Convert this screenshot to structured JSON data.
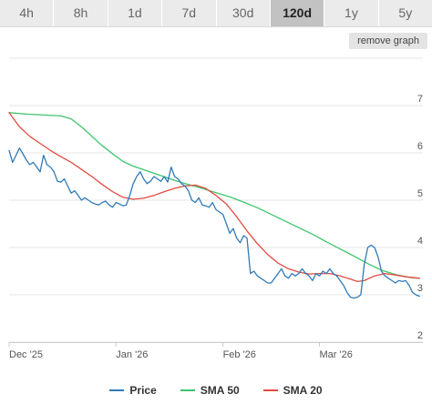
{
  "range_buttons": [
    {
      "label": "4h"
    },
    {
      "label": "8h"
    },
    {
      "label": "1d"
    },
    {
      "label": "7d"
    },
    {
      "label": "30d"
    },
    {
      "label": "120d",
      "active": true
    },
    {
      "label": "1y"
    },
    {
      "label": "5y"
    }
  ],
  "remove_graph_label": "remove graph",
  "legend": [
    {
      "label": "Price",
      "color": "#2f7ab8"
    },
    {
      "label": "SMA 50",
      "color": "#3ec46d"
    },
    {
      "label": "SMA 20",
      "color": "#e44b40"
    }
  ],
  "chart_data": {
    "type": "line",
    "title": "",
    "xlabel": "",
    "ylabel": "",
    "x_range": [
      0,
      120
    ],
    "ylim": [
      2,
      8
    ],
    "y_ticks": [
      2,
      3,
      4,
      5,
      6,
      7
    ],
    "x_ticks": [
      {
        "label": "Dec '25",
        "x": 0
      },
      {
        "label": "Jan '26",
        "x": 31
      },
      {
        "label": "Feb '26",
        "x": 62
      },
      {
        "label": "Mar '26",
        "x": 90
      }
    ],
    "grid": true,
    "legend_position": "bottom",
    "series": [
      {
        "name": "Price",
        "color": "#2f7ab8",
        "points": [
          [
            0,
            6.05
          ],
          [
            1,
            5.8
          ],
          [
            2,
            5.95
          ],
          [
            3,
            6.1
          ],
          [
            4,
            5.98
          ],
          [
            5,
            5.85
          ],
          [
            6,
            5.75
          ],
          [
            7,
            5.8
          ],
          [
            8,
            5.7
          ],
          [
            9,
            5.6
          ],
          [
            10,
            5.95
          ],
          [
            11,
            5.75
          ],
          [
            12,
            5.7
          ],
          [
            13,
            5.6
          ],
          [
            14,
            5.4
          ],
          [
            15,
            5.38
          ],
          [
            16,
            5.45
          ],
          [
            17,
            5.3
          ],
          [
            18,
            5.15
          ],
          [
            19,
            5.2
          ],
          [
            20,
            5.1
          ],
          [
            21,
            5.0
          ],
          [
            22,
            5.05
          ],
          [
            23,
            5.0
          ],
          [
            24,
            4.95
          ],
          [
            25,
            4.92
          ],
          [
            26,
            4.9
          ],
          [
            27,
            4.95
          ],
          [
            28,
            4.98
          ],
          [
            29,
            4.9
          ],
          [
            30,
            4.85
          ],
          [
            31,
            4.95
          ],
          [
            32,
            4.92
          ],
          [
            33,
            4.88
          ],
          [
            34,
            4.9
          ],
          [
            35,
            5.1
          ],
          [
            36,
            5.35
          ],
          [
            37,
            5.5
          ],
          [
            38,
            5.6
          ],
          [
            39,
            5.45
          ],
          [
            40,
            5.35
          ],
          [
            41,
            5.4
          ],
          [
            42,
            5.5
          ],
          [
            43,
            5.45
          ],
          [
            44,
            5.4
          ],
          [
            45,
            5.5
          ],
          [
            46,
            5.38
          ],
          [
            47,
            5.7
          ],
          [
            48,
            5.5
          ],
          [
            49,
            5.45
          ],
          [
            50,
            5.35
          ],
          [
            51,
            5.3
          ],
          [
            52,
            5.2
          ],
          [
            53,
            5.0
          ],
          [
            54,
            4.95
          ],
          [
            55,
            5.05
          ],
          [
            56,
            4.9
          ],
          [
            57,
            4.88
          ],
          [
            58,
            4.85
          ],
          [
            59,
            4.95
          ],
          [
            60,
            4.8
          ],
          [
            61,
            4.75
          ],
          [
            62,
            4.7
          ],
          [
            63,
            4.5
          ],
          [
            64,
            4.3
          ],
          [
            65,
            4.4
          ],
          [
            66,
            4.2
          ],
          [
            67,
            4.1
          ],
          [
            68,
            4.25
          ],
          [
            69,
            4.2
          ],
          [
            70,
            3.45
          ],
          [
            71,
            3.5
          ],
          [
            72,
            3.4
          ],
          [
            73,
            3.35
          ],
          [
            74,
            3.3
          ],
          [
            75,
            3.25
          ],
          [
            76,
            3.25
          ],
          [
            77,
            3.35
          ],
          [
            78,
            3.45
          ],
          [
            79,
            3.55
          ],
          [
            80,
            3.4
          ],
          [
            81,
            3.35
          ],
          [
            82,
            3.45
          ],
          [
            83,
            3.4
          ],
          [
            84,
            3.45
          ],
          [
            85,
            3.55
          ],
          [
            86,
            3.45
          ],
          [
            87,
            3.4
          ],
          [
            88,
            3.3
          ],
          [
            89,
            3.45
          ],
          [
            90,
            3.4
          ],
          [
            91,
            3.5
          ],
          [
            92,
            3.45
          ],
          [
            93,
            3.55
          ],
          [
            94,
            3.45
          ],
          [
            95,
            3.4
          ],
          [
            96,
            3.3
          ],
          [
            97,
            3.2
          ],
          [
            98,
            3.05
          ],
          [
            99,
            2.95
          ],
          [
            100,
            2.93
          ],
          [
            101,
            2.95
          ],
          [
            102,
            3.0
          ],
          [
            103,
            3.65
          ],
          [
            104,
            4.0
          ],
          [
            105,
            4.05
          ],
          [
            106,
            4.0
          ],
          [
            107,
            3.8
          ],
          [
            108,
            3.5
          ],
          [
            109,
            3.4
          ],
          [
            110,
            3.35
          ],
          [
            111,
            3.3
          ],
          [
            112,
            3.25
          ],
          [
            113,
            3.3
          ],
          [
            114,
            3.28
          ],
          [
            115,
            3.3
          ],
          [
            116,
            3.2
          ],
          [
            117,
            3.05
          ],
          [
            118,
            3.0
          ],
          [
            119,
            2.97
          ]
        ]
      },
      {
        "name": "SMA 50",
        "color": "#3ec46d",
        "points": [
          [
            0,
            6.85
          ],
          [
            5,
            6.82
          ],
          [
            10,
            6.8
          ],
          [
            15,
            6.78
          ],
          [
            18,
            6.72
          ],
          [
            21,
            6.55
          ],
          [
            24,
            6.35
          ],
          [
            27,
            6.15
          ],
          [
            30,
            5.98
          ],
          [
            33,
            5.82
          ],
          [
            36,
            5.72
          ],
          [
            40,
            5.62
          ],
          [
            44,
            5.52
          ],
          [
            48,
            5.42
          ],
          [
            52,
            5.33
          ],
          [
            56,
            5.25
          ],
          [
            60,
            5.16
          ],
          [
            64,
            5.07
          ],
          [
            68,
            4.96
          ],
          [
            72,
            4.84
          ],
          [
            76,
            4.7
          ],
          [
            80,
            4.56
          ],
          [
            84,
            4.42
          ],
          [
            88,
            4.28
          ],
          [
            92,
            4.12
          ],
          [
            96,
            3.97
          ],
          [
            100,
            3.82
          ],
          [
            104,
            3.66
          ],
          [
            108,
            3.52
          ],
          [
            112,
            3.43
          ],
          [
            116,
            3.37
          ],
          [
            119,
            3.35
          ]
        ]
      },
      {
        "name": "SMA 20",
        "color": "#e44b40",
        "points": [
          [
            0,
            6.85
          ],
          [
            3,
            6.55
          ],
          [
            6,
            6.35
          ],
          [
            9,
            6.2
          ],
          [
            12,
            6.05
          ],
          [
            15,
            5.92
          ],
          [
            18,
            5.8
          ],
          [
            21,
            5.65
          ],
          [
            24,
            5.5
          ],
          [
            27,
            5.33
          ],
          [
            30,
            5.18
          ],
          [
            33,
            5.06
          ],
          [
            36,
            5.02
          ],
          [
            39,
            5.04
          ],
          [
            42,
            5.1
          ],
          [
            45,
            5.18
          ],
          [
            48,
            5.25
          ],
          [
            51,
            5.3
          ],
          [
            54,
            5.32
          ],
          [
            57,
            5.25
          ],
          [
            60,
            5.1
          ],
          [
            63,
            4.92
          ],
          [
            66,
            4.65
          ],
          [
            69,
            4.35
          ],
          [
            72,
            4.08
          ],
          [
            75,
            3.85
          ],
          [
            78,
            3.67
          ],
          [
            81,
            3.55
          ],
          [
            84,
            3.48
          ],
          [
            87,
            3.44
          ],
          [
            90,
            3.45
          ],
          [
            93,
            3.45
          ],
          [
            96,
            3.4
          ],
          [
            99,
            3.33
          ],
          [
            101,
            3.28
          ],
          [
            103,
            3.3
          ],
          [
            106,
            3.4
          ],
          [
            109,
            3.45
          ],
          [
            112,
            3.42
          ],
          [
            115,
            3.38
          ],
          [
            119,
            3.35
          ]
        ]
      }
    ]
  }
}
